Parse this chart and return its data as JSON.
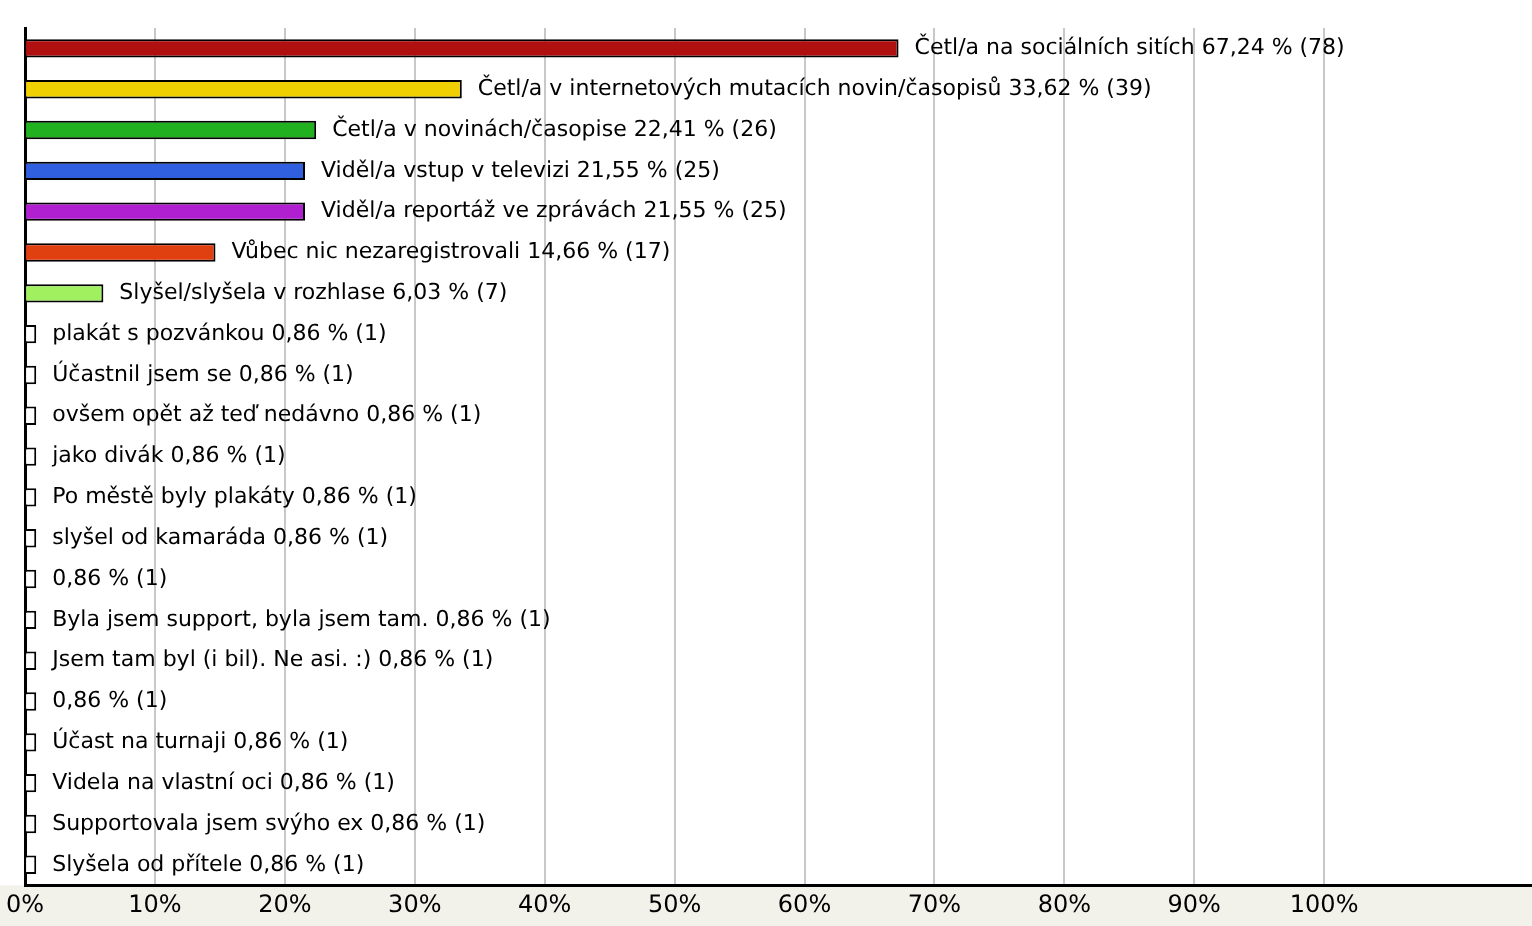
{
  "chart_data": {
    "type": "bar",
    "orientation": "horizontal",
    "grid": "x",
    "categories": [
      "Četl/a na sociálních sitích",
      "Četl/a v internetových mutacích novin/časopisů",
      "Četl/a v novinách/časopise",
      "Viděl/a vstup v televizi",
      "Viděl/a reportáž ve zprávách",
      "Vůbec nic nezaregistrovali",
      "Slyšel/slyšela v rozhlase",
      "plakát s pozvánkou",
      "Účastnil jsem se",
      "ovšem opět až teď nedávno",
      "jako divák",
      "Po městě byly plakáty",
      "slyšel od kamaráda",
      null,
      "Byla jsem support, byla jsem tam.",
      "Jsem tam byl (i bil). Ne asi. :)",
      null,
      "Účast na turnaji",
      "Videla na vlastní oci",
      "Supportovala jsem svýho ex",
      "Slyšela od přítele"
    ],
    "values": [
      67.24,
      33.62,
      22.41,
      21.55,
      21.55,
      14.66,
      6.03,
      0.86,
      0.86,
      0.86,
      0.86,
      0.86,
      0.86,
      0.86,
      0.86,
      0.86,
      0.86,
      0.86,
      0.86,
      0.86,
      0.86
    ],
    "value_labels": [
      "67,24 % (78)",
      "33,62 % (39)",
      "22,41 % (26)",
      "21,55 % (25)",
      "21,55 % (25)",
      "14,66 % (17)",
      "6,03 % (7)",
      "0,86 % (1)",
      "0,86 % (1)",
      "0,86 % (1)",
      "0,86 % (1)",
      "0,86 % (1)",
      "0,86 % (1)",
      "0,86 % (1)",
      "0,86 % (1)",
      "0,86 % (1)",
      "0,86 % (1)",
      "0,86 % (1)",
      "0,86 % (1)",
      "0,86 % (1)",
      "0,86 % (1)"
    ],
    "colors": [
      "#b01010",
      "#f0d000",
      "#20b020",
      "#3060e0",
      "#b020d0",
      "#e04010",
      "#a0f060",
      "#ffffff",
      "#ffffff",
      "#ffffff",
      "#ffffff",
      "#ffffff",
      "#ffffff",
      "#ffffff",
      "#ffffff",
      "#ffffff",
      "#ffffff",
      "#ffffff",
      "#ffffff",
      "#ffffff",
      "#ffffff"
    ],
    "xlim": [
      0,
      116
    ],
    "xticks": [
      {
        "value": 0,
        "label": "0%"
      },
      {
        "value": 10,
        "label": "10%"
      },
      {
        "value": 20,
        "label": "20%"
      },
      {
        "value": 30,
        "label": "30%"
      },
      {
        "value": 40,
        "label": "40%"
      },
      {
        "value": 50,
        "label": "50%"
      },
      {
        "value": 60,
        "label": "60%"
      },
      {
        "value": 70,
        "label": "70%"
      },
      {
        "value": 80,
        "label": "80%"
      },
      {
        "value": 90,
        "label": "90%"
      },
      {
        "value": 100,
        "label": "100%"
      }
    ]
  }
}
